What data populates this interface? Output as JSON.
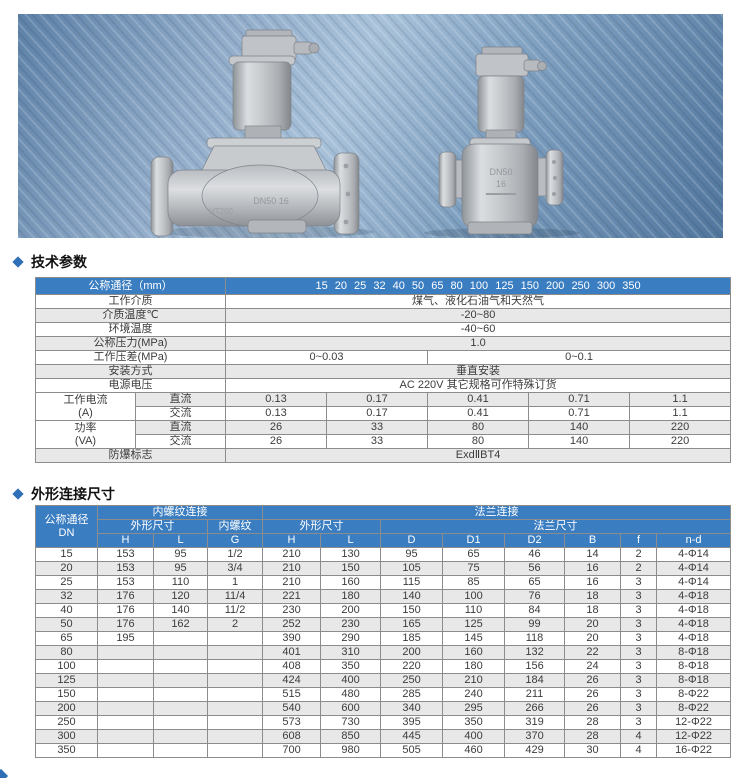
{
  "colors": {
    "header_blue": "#3a7dc1",
    "row_gray": "#e8e8e8",
    "bullet_blue": "#2e6fb7"
  },
  "photo": {
    "left_valve": {
      "marking1": "DN50 16",
      "marking2": "HT200"
    },
    "right_valve": {
      "marking1": "DN50",
      "marking2": "16"
    }
  },
  "sections": {
    "tech": {
      "title": "技术参数"
    },
    "dims": {
      "title": "外形连接尺寸"
    }
  },
  "tech_table": {
    "col_header_label": "公称通径（mm）",
    "col_header_values": "15 20 25 32 40 50 65 80 100 125 150 200 250 300 350",
    "rows": {
      "medium": {
        "label": "工作介质",
        "value": "煤气、液化石油气和天然气"
      },
      "medium_temp": {
        "label": "介质温度℃",
        "value": "-20~80"
      },
      "ambient_temp": {
        "label": "环境温度",
        "value": "-40~60"
      },
      "nominal_pressure": {
        "label": "公称压力(MPa)",
        "value": "1.0"
      },
      "pressure_diff": {
        "label": "工作压差(MPa)",
        "value_low": "0~0.03",
        "value_high": "0~0.1"
      },
      "mounting": {
        "label": "安装方式",
        "value": "垂直安装"
      },
      "voltage": {
        "label": "电源电压",
        "value": "AC 220V 其它规格可作特殊订货"
      },
      "current": {
        "label_line1": "工作电流",
        "label_line2": "(A)",
        "dc_label": "直流",
        "ac_label": "交流",
        "dc": [
          "0.13",
          "0.17",
          "0.41",
          "0.71",
          "1.1"
        ],
        "ac": [
          "0.13",
          "0.17",
          "0.41",
          "0.71",
          "1.1"
        ]
      },
      "power": {
        "label_line1": "功率",
        "label_line2": "(VA)",
        "dc_label": "直流",
        "ac_label": "交流",
        "dc": [
          "26",
          "33",
          "80",
          "140",
          "220"
        ],
        "ac": [
          "26",
          "33",
          "80",
          "140",
          "220"
        ]
      },
      "explosion": {
        "label": "防爆标志",
        "value": "ExdⅡBT4"
      }
    }
  },
  "dim_table": {
    "header": {
      "dn_line1": "公称通径",
      "dn_line2": "DN",
      "thread_group": "内螺纹连接",
      "flange_group": "法兰连接",
      "thread_outline": "外形尺寸",
      "thread_label": "内螺纹",
      "flange_outline": "外形尺寸",
      "flange_dims": "法兰尺寸",
      "cols": [
        "H",
        "L",
        "G",
        "H",
        "L",
        "D",
        "D1",
        "D2",
        "B",
        "f",
        "n-d"
      ]
    },
    "rows": [
      [
        "15",
        "153",
        "95",
        "1/2",
        "210",
        "130",
        "95",
        "65",
        "46",
        "14",
        "2",
        "4-Φ14"
      ],
      [
        "20",
        "153",
        "95",
        "3/4",
        "210",
        "150",
        "105",
        "75",
        "56",
        "16",
        "2",
        "4-Φ14"
      ],
      [
        "25",
        "153",
        "110",
        "1",
        "210",
        "160",
        "115",
        "85",
        "65",
        "16",
        "3",
        "4-Φ14"
      ],
      [
        "32",
        "176",
        "120",
        "11/4",
        "221",
        "180",
        "140",
        "100",
        "76",
        "18",
        "3",
        "4-Φ18"
      ],
      [
        "40",
        "176",
        "140",
        "11/2",
        "230",
        "200",
        "150",
        "110",
        "84",
        "18",
        "3",
        "4-Φ18"
      ],
      [
        "50",
        "176",
        "162",
        "2",
        "252",
        "230",
        "165",
        "125",
        "99",
        "20",
        "3",
        "4-Φ18"
      ],
      [
        "65",
        "195",
        "",
        "",
        "390",
        "290",
        "185",
        "145",
        "118",
        "20",
        "3",
        "4-Φ18"
      ],
      [
        "80",
        "",
        "",
        "",
        "401",
        "310",
        "200",
        "160",
        "132",
        "22",
        "3",
        "8-Φ18"
      ],
      [
        "100",
        "",
        "",
        "",
        "408",
        "350",
        "220",
        "180",
        "156",
        "24",
        "3",
        "8-Φ18"
      ],
      [
        "125",
        "",
        "",
        "",
        "424",
        "400",
        "250",
        "210",
        "184",
        "26",
        "3",
        "8-Φ18"
      ],
      [
        "150",
        "",
        "",
        "",
        "515",
        "480",
        "285",
        "240",
        "211",
        "26",
        "3",
        "8-Φ22"
      ],
      [
        "200",
        "",
        "",
        "",
        "540",
        "600",
        "340",
        "295",
        "266",
        "26",
        "3",
        "8-Φ22"
      ],
      [
        "250",
        "",
        "",
        "",
        "573",
        "730",
        "395",
        "350",
        "319",
        "28",
        "3",
        "12-Φ22"
      ],
      [
        "300",
        "",
        "",
        "",
        "608",
        "850",
        "445",
        "400",
        "370",
        "28",
        "4",
        "12-Φ22"
      ],
      [
        "350",
        "",
        "",
        "",
        "700",
        "980",
        "505",
        "460",
        "429",
        "30",
        "4",
        "16-Φ22"
      ]
    ]
  }
}
